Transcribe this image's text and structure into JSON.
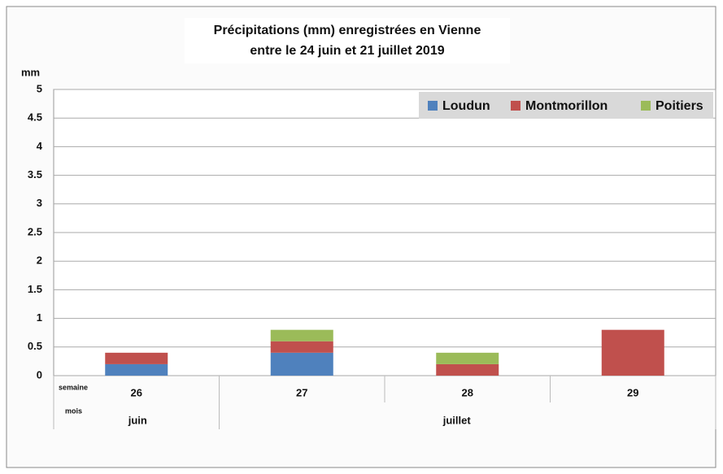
{
  "chart_data": {
    "type": "stacked_bar",
    "title": [
      "Précipitations (mm) enregistrées en Vienne",
      "entre le 24 juin et 21 juillet 2019"
    ],
    "y_label": "mm",
    "categories": [
      "26",
      "27",
      "28",
      "29"
    ],
    "category_row_label": "semaine",
    "group_row_label": "mois",
    "groups": [
      {
        "label": "juin",
        "count": 1
      },
      {
        "label": "juillet",
        "count": 3
      }
    ],
    "series": [
      {
        "name": "Loudun",
        "color": "#4f81bd",
        "values": [
          0.2,
          0.4,
          0,
          0
        ]
      },
      {
        "name": "Montmorillon",
        "color": "#c0504d",
        "values": [
          0.2,
          0.2,
          0.2,
          0.8
        ]
      },
      {
        "name": "Poitiers",
        "color": "#9bbb59",
        "values": [
          0,
          0.2,
          0.2,
          0
        ]
      }
    ],
    "ylim": [
      0,
      5
    ],
    "yticks": [
      0,
      0.5,
      1,
      1.5,
      2,
      2.5,
      3,
      3.5,
      4,
      4.5,
      5
    ],
    "grid": true,
    "legend": "top-right"
  }
}
